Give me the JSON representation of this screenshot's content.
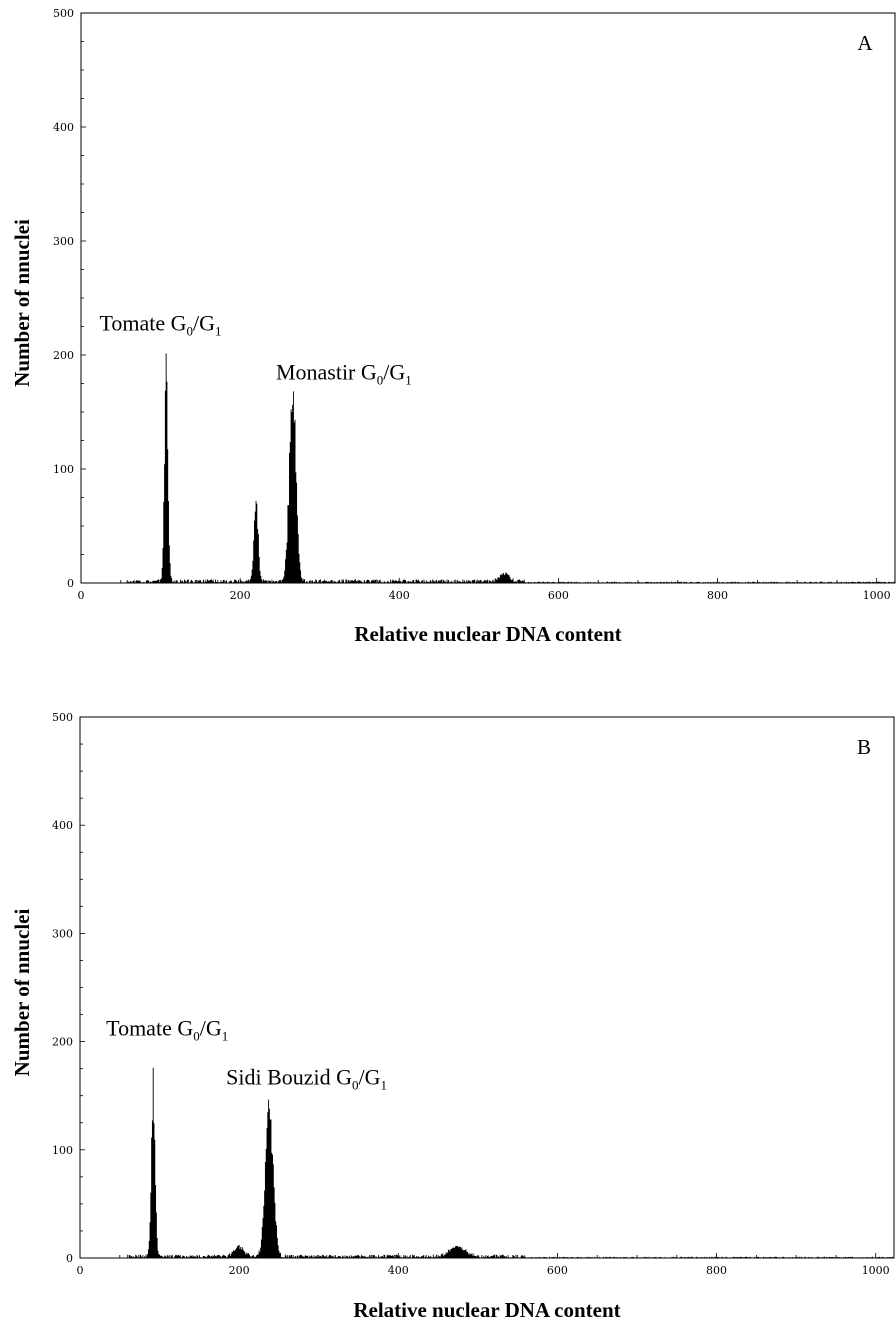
{
  "chart_data": [
    {
      "type": "bar",
      "panel_label": "A",
      "xlabel": "Relative nuclear DNA content",
      "ylabel": "Number of nnuclei",
      "xlim": [
        0,
        1023
      ],
      "ylim": [
        0,
        500
      ],
      "x_ticks": [
        "0",
        "200",
        "400",
        "600",
        "800",
        "1000"
      ],
      "y_ticks": [
        "0",
        "100",
        "200",
        "300",
        "400",
        "500"
      ],
      "grid": false,
      "annotations": [
        {
          "name": "Tomate",
          "sub1": "0",
          "mid": "/G",
          "sub2": "1",
          "x": 110,
          "y": 190
        },
        {
          "name": "Monastir",
          "sub1": "0",
          "mid": "/G",
          "sub2": "1",
          "x": 265,
          "y": 175
        }
      ],
      "series": [
        {
          "peaks": [
            {
              "center": 107,
              "height": 192,
              "width": 2.2
            },
            {
              "center": 220,
              "height": 80,
              "width": 2.5
            },
            {
              "center": 266,
              "height": 176,
              "width": 4.2
            },
            {
              "center": 532,
              "height": 7,
              "width": 6
            }
          ],
          "baseline": 2,
          "range": [
            58,
            1023
          ],
          "end_spike": 52
        }
      ]
    },
    {
      "type": "bar",
      "panel_label": "B",
      "xlabel": "Relative nuclear DNA content",
      "ylabel": "Number of nnuclei",
      "xlim": [
        0,
        1023
      ],
      "ylim": [
        0,
        500
      ],
      "x_ticks": [
        "0",
        "200",
        "400",
        "600",
        "800",
        "1000"
      ],
      "y_ticks": [
        "0",
        "100",
        "200",
        "300",
        "400",
        "500"
      ],
      "grid": false,
      "annotations": [
        {
          "name": "Tomate",
          "sub1": "0",
          "mid": "/G",
          "sub2": "1",
          "x": 92,
          "y": 176
        },
        {
          "name": "Sidi Bouzid",
          "sub1": "0",
          "mid": "/G",
          "sub2": "1",
          "x": 237,
          "y": 155
        }
      ],
      "series": [
        {
          "peaks": [
            {
              "center": 92,
              "height": 176,
              "width": 2.3
            },
            {
              "center": 200,
              "height": 10,
              "width": 6
            },
            {
              "center": 238,
              "height": 154,
              "width": 4.8
            },
            {
              "center": 475,
              "height": 10,
              "width": 10
            }
          ],
          "baseline": 2,
          "range": [
            60,
            1023
          ],
          "end_spike": 12
        }
      ]
    }
  ]
}
